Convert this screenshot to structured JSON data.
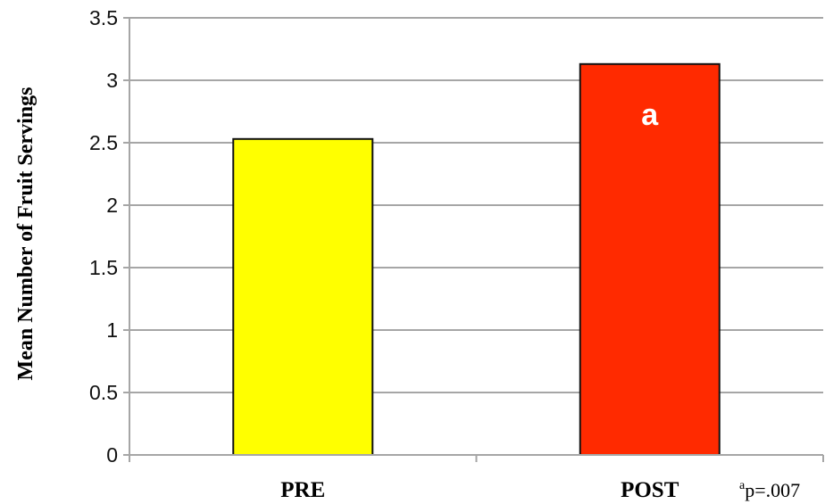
{
  "chart_data": {
    "type": "bar",
    "categories": [
      "PRE",
      "POST"
    ],
    "values": [
      2.53,
      3.13
    ],
    "ylabel": "Mean Number of Fruit Servings",
    "xlabel": "",
    "ylim": [
      0,
      3.5
    ],
    "yticks": [
      0,
      0.5,
      1,
      1.5,
      2,
      2.5,
      3,
      3.5
    ],
    "ytick_labels": [
      "0",
      "0.5",
      "1",
      "1.5",
      "2",
      "2.5",
      "3",
      "3.5"
    ],
    "grid": true,
    "bar_colors": [
      "#ffff00",
      "#ff2a00"
    ],
    "bar_edge_color": "#111111",
    "grid_color": "#a6a6a6",
    "annotations": [
      {
        "category": "POST",
        "text": "a"
      }
    ],
    "footnote": {
      "superscript": "a",
      "text": "p=.007"
    }
  }
}
